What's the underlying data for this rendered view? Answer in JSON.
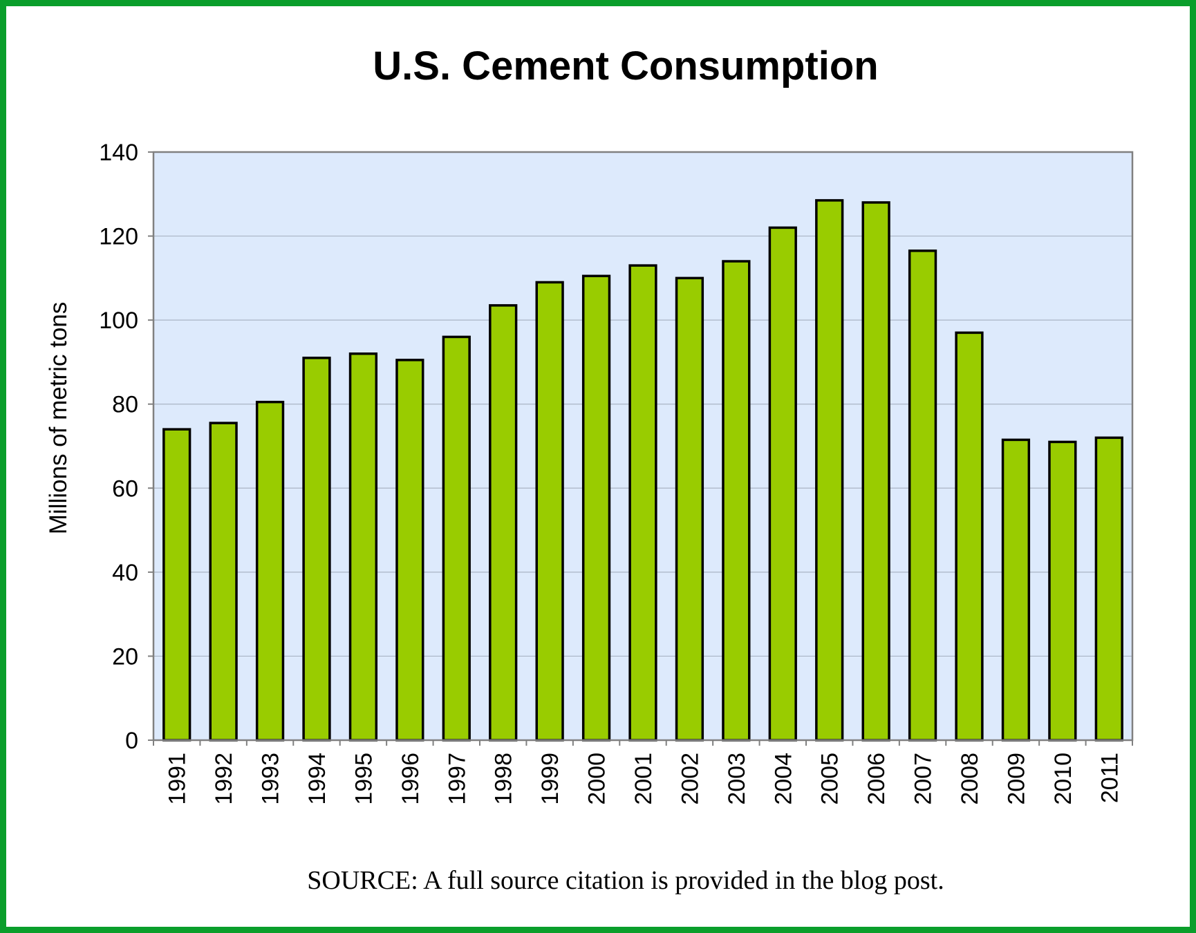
{
  "chart_data": {
    "type": "bar",
    "title": "U.S. Cement Consumption",
    "xlabel": "",
    "ylabel": "Millions of metric tons",
    "ylim": [
      0,
      140
    ],
    "yticks": [
      "0",
      "20",
      "40",
      "60",
      "80",
      "100",
      "120",
      "140"
    ],
    "categories": [
      "1991",
      "1992",
      "1993",
      "1994",
      "1995",
      "1996",
      "1997",
      "1998",
      "1999",
      "2000",
      "2001",
      "2002",
      "2003",
      "2004",
      "2005",
      "2006",
      "2007",
      "2008",
      "2009",
      "2010",
      "2011"
    ],
    "values": [
      74.0,
      75.5,
      80.5,
      91.0,
      92.0,
      90.5,
      96.0,
      103.5,
      109.0,
      110.5,
      113.0,
      110.0,
      114.0,
      122.0,
      128.5,
      128.0,
      116.5,
      97.0,
      71.5,
      71.0,
      72.0
    ],
    "grid": true,
    "colors": {
      "bar": "#99cc00",
      "bar_edge": "#000000",
      "plot_bg": "#ddeafc",
      "grid": "#a9b4c4",
      "frame": "#0a9e2b"
    },
    "source": "SOURCE: A full source citation is provided in the blog post."
  }
}
